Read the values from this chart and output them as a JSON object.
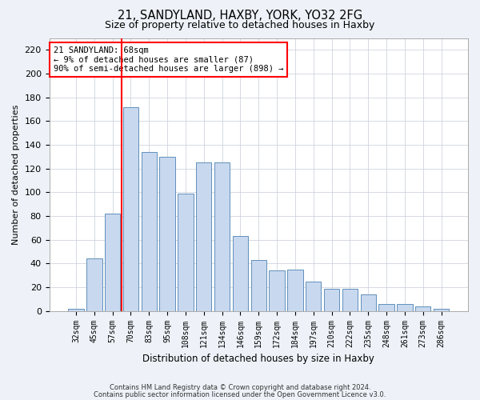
{
  "title1": "21, SANDYLAND, HAXBY, YORK, YO32 2FG",
  "title2": "Size of property relative to detached houses in Haxby",
  "xlabel": "Distribution of detached houses by size in Haxby",
  "ylabel": "Number of detached properties",
  "categories": [
    "32sqm",
    "45sqm",
    "57sqm",
    "70sqm",
    "83sqm",
    "95sqm",
    "108sqm",
    "121sqm",
    "134sqm",
    "146sqm",
    "159sqm",
    "172sqm",
    "184sqm",
    "197sqm",
    "210sqm",
    "222sqm",
    "235sqm",
    "248sqm",
    "261sqm",
    "273sqm",
    "286sqm"
  ],
  "values": [
    2,
    44,
    82,
    172,
    134,
    130,
    99,
    125,
    125,
    63,
    43,
    34,
    35,
    25,
    19,
    19,
    14,
    6,
    6,
    4,
    2
  ],
  "bar_color": "#c8d8ee",
  "bar_edge_color": "#6090bb",
  "vline_color": "red",
  "annotation_line1": "21 SANDYLAND: 68sqm",
  "annotation_line2": "← 9% of detached houses are smaller (87)",
  "annotation_line3": "90% of semi-detached houses are larger (898) →",
  "annotation_box_color": "white",
  "annotation_box_edge": "red",
  "footer1": "Contains HM Land Registry data © Crown copyright and database right 2024.",
  "footer2": "Contains public sector information licensed under the Open Government Licence v3.0.",
  "ylim": [
    0,
    230
  ],
  "yticks": [
    0,
    20,
    40,
    60,
    80,
    100,
    120,
    140,
    160,
    180,
    200,
    220
  ],
  "bg_color": "#eef2f8",
  "plot_bg_color": "#ffffff"
}
